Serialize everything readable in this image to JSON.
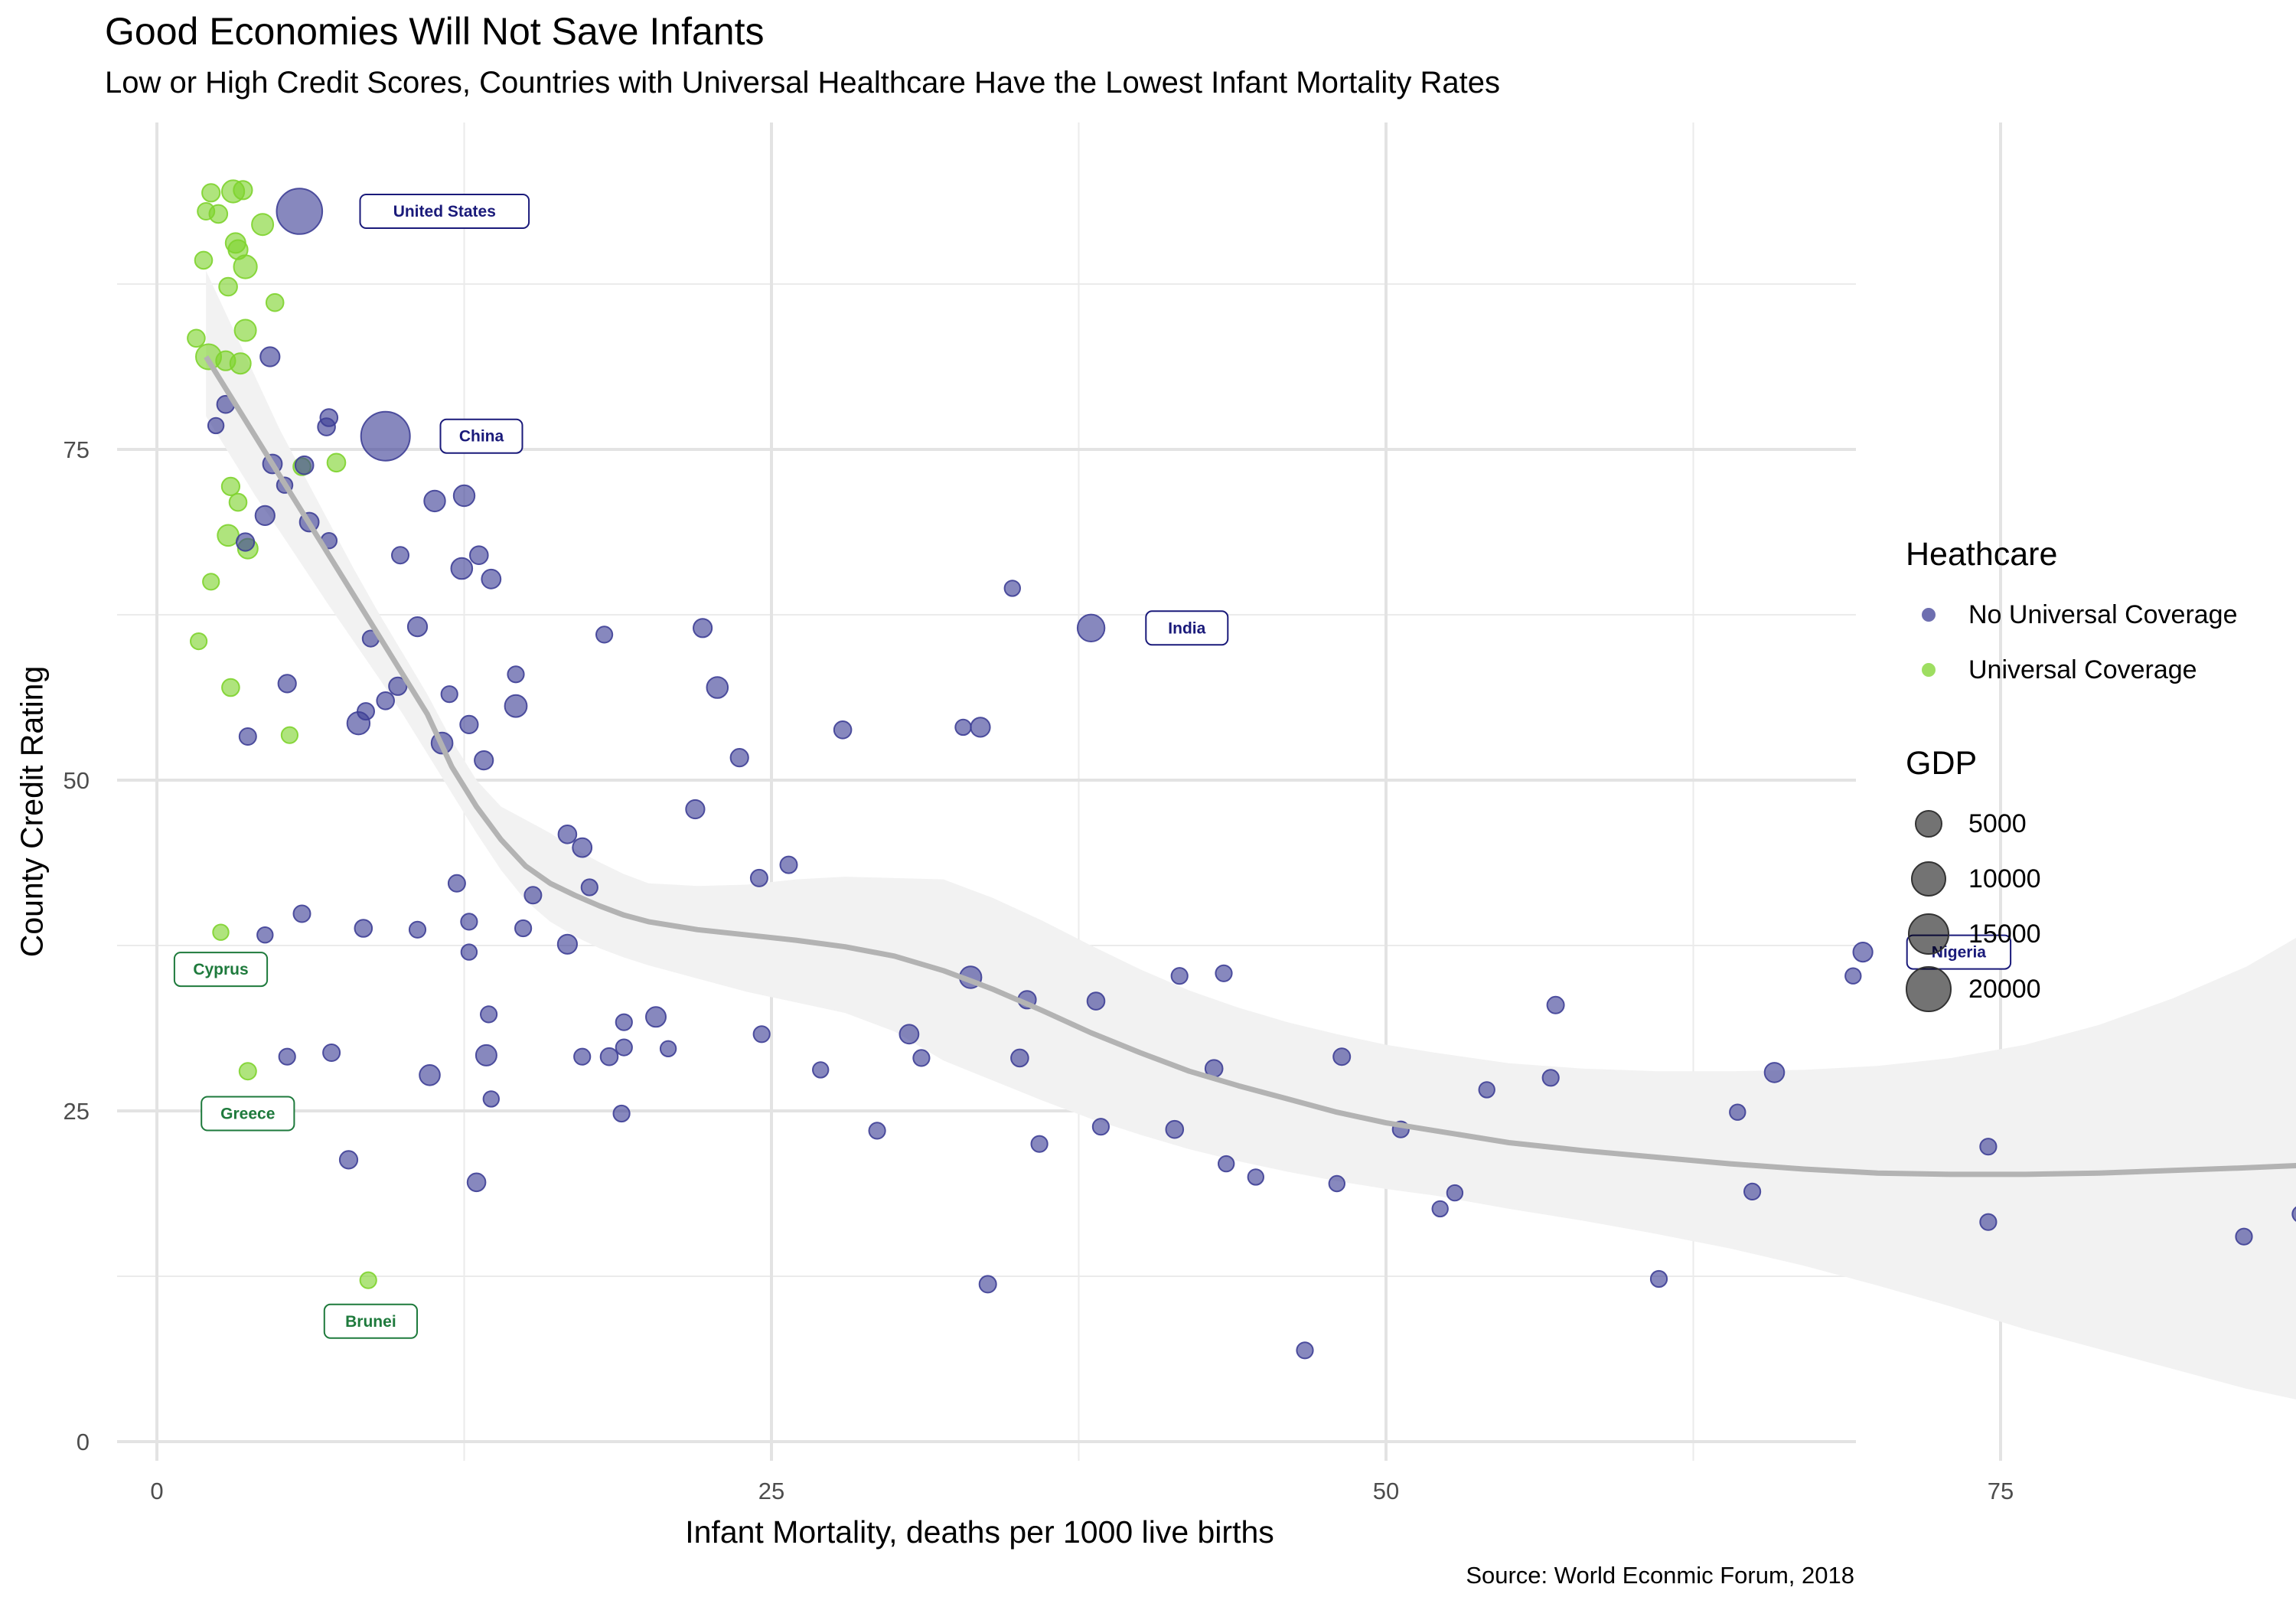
{
  "chart_data": {
    "type": "scatter",
    "title": "Good Economies Will Not Save Infants",
    "subtitle": "Low or High Credit Scores, Countries with Universal Healthcare Have the Lowest Infant Mortality Rates",
    "caption": "Source: World Econmic Forum, 2018",
    "xlabel": "Infant Mortality, deaths per 1000 live births",
    "ylabel": "County Credit Rating",
    "xlim": [
      -2,
      91
    ],
    "ylim": [
      -1.5,
      99
    ],
    "x_ticks": [
      0,
      25,
      50,
      75
    ],
    "y_ticks": [
      0,
      25,
      50,
      75
    ],
    "grid": true,
    "legend_position": "right",
    "colors": {
      "No Universal Coverage": "#3e3f96",
      "Universal Coverage": "#7ed32d",
      "smooth_line": "#b3b3b3",
      "confidence_band": "#f2f2f2",
      "gridline": "#ebebeb",
      "label_no_universal": "#1a1a7a",
      "label_universal": "#1e7a3c"
    },
    "legend_healthcare": {
      "title": "Heathcare",
      "entries": [
        "No Universal Coverage",
        "Universal Coverage"
      ]
    },
    "legend_gdp": {
      "title": "GDP",
      "entries": [
        5000,
        10000,
        15000,
        20000
      ]
    },
    "series": [
      {
        "name": "Universal Coverage",
        "points": [
          [
            2.2,
            94.4,
            800
          ],
          [
            2.0,
            93.0,
            600
          ],
          [
            2.5,
            92.8,
            900
          ],
          [
            3.1,
            94.5,
            2200
          ],
          [
            3.5,
            94.6,
            1000
          ],
          [
            4.3,
            92.0,
            1900
          ],
          [
            3.2,
            90.6,
            1400
          ],
          [
            3.3,
            90.1,
            1200
          ],
          [
            1.9,
            89.3,
            700
          ],
          [
            3.6,
            88.8,
            2500
          ],
          [
            2.9,
            87.3,
            900
          ],
          [
            4.8,
            86.1,
            700
          ],
          [
            3.6,
            84.0,
            1900
          ],
          [
            1.6,
            83.4,
            700
          ],
          [
            2.1,
            82.0,
            3500
          ],
          [
            2.8,
            81.7,
            1200
          ],
          [
            3.4,
            81.5,
            1600
          ],
          [
            7.3,
            74.0,
            900
          ],
          [
            5.9,
            73.7,
            700
          ],
          [
            3.0,
            72.2,
            800
          ],
          [
            3.3,
            71.0,
            700
          ],
          [
            2.9,
            68.5,
            1800
          ],
          [
            3.7,
            67.5,
            1400
          ],
          [
            2.2,
            65.0,
            500
          ],
          [
            1.7,
            60.5,
            500
          ],
          [
            3.0,
            57.0,
            700
          ],
          [
            5.4,
            53.4,
            500
          ],
          [
            2.6,
            38.5,
            400
          ],
          [
            3.7,
            28.0,
            600
          ],
          [
            8.6,
            12.2,
            500
          ]
        ]
      },
      {
        "name": "No Universal Coverage",
        "points": [
          [
            5.8,
            93.0,
            20000
          ],
          [
            4.6,
            82.0,
            1200
          ],
          [
            2.8,
            78.4,
            700
          ],
          [
            2.4,
            76.8,
            400
          ],
          [
            7.0,
            77.4,
            700
          ],
          [
            6.9,
            76.7,
            700
          ],
          [
            9.3,
            76.0,
            24000
          ],
          [
            4.7,
            73.9,
            1100
          ],
          [
            6.0,
            73.8,
            900
          ],
          [
            5.2,
            72.3,
            400
          ],
          [
            11.3,
            71.1,
            1700
          ],
          [
            12.5,
            71.5,
            1700
          ],
          [
            4.4,
            70.0,
            1200
          ],
          [
            6.2,
            69.5,
            1100
          ],
          [
            7.0,
            68.1,
            400
          ],
          [
            3.6,
            68.0,
            800
          ],
          [
            9.9,
            67.0,
            600
          ],
          [
            13.1,
            67.0,
            900
          ],
          [
            12.4,
            66.0,
            1800
          ],
          [
            13.6,
            65.2,
            1100
          ],
          [
            34.8,
            64.5,
            400
          ],
          [
            38.0,
            61.5,
            4400
          ],
          [
            22.2,
            61.5,
            1000
          ],
          [
            10.6,
            61.6,
            1200
          ],
          [
            18.2,
            61.0,
            500
          ],
          [
            8.7,
            60.7,
            500
          ],
          [
            14.6,
            58.0,
            500
          ],
          [
            5.3,
            57.3,
            800
          ],
          [
            9.8,
            57.1,
            800
          ],
          [
            22.8,
            57.0,
            1800
          ],
          [
            11.9,
            56.5,
            500
          ],
          [
            9.3,
            56.0,
            700
          ],
          [
            14.6,
            55.6,
            2100
          ],
          [
            8.5,
            55.2,
            600
          ],
          [
            11.6,
            52.8,
            1800
          ],
          [
            8.2,
            54.3,
            2300
          ],
          [
            12.7,
            54.2,
            800
          ],
          [
            27.9,
            53.8,
            700
          ],
          [
            33.5,
            54.0,
            1200
          ],
          [
            32.8,
            54.0,
            400
          ],
          [
            3.7,
            53.3,
            600
          ],
          [
            13.3,
            51.5,
            1000
          ],
          [
            23.7,
            51.7,
            800
          ],
          [
            21.9,
            47.8,
            1000
          ],
          [
            16.7,
            45.9,
            900
          ],
          [
            17.3,
            44.9,
            1100
          ],
          [
            25.7,
            43.6,
            600
          ],
          [
            24.5,
            42.6,
            600
          ],
          [
            12.2,
            42.2,
            600
          ],
          [
            17.6,
            41.9,
            500
          ],
          [
            15.3,
            41.3,
            600
          ],
          [
            5.9,
            39.9,
            600
          ],
          [
            12.7,
            39.3,
            500
          ],
          [
            8.4,
            38.8,
            700
          ],
          [
            10.6,
            38.7,
            500
          ],
          [
            14.9,
            38.8,
            500
          ],
          [
            4.4,
            38.3,
            400
          ],
          [
            16.7,
            37.6,
            1200
          ],
          [
            12.7,
            37.0,
            400
          ],
          [
            69.4,
            37.0,
            1200
          ],
          [
            41.6,
            35.2,
            500
          ],
          [
            43.4,
            35.4,
            500
          ],
          [
            69.0,
            35.2,
            400
          ],
          [
            33.1,
            35.1,
            2000
          ],
          [
            35.4,
            33.4,
            800
          ],
          [
            38.2,
            33.3,
            700
          ],
          [
            56.9,
            33.0,
            600
          ],
          [
            13.5,
            32.3,
            500
          ],
          [
            20.3,
            32.1,
            1400
          ],
          [
            19.0,
            31.7,
            500
          ],
          [
            24.6,
            30.8,
            500
          ],
          [
            30.6,
            30.8,
            1100
          ],
          [
            5.3,
            29.1,
            500
          ],
          [
            7.1,
            29.4,
            600
          ],
          [
            13.4,
            29.2,
            1600
          ],
          [
            17.3,
            29.1,
            500
          ],
          [
            18.4,
            29.1,
            700
          ],
          [
            19.0,
            29.8,
            500
          ],
          [
            20.8,
            29.7,
            400
          ],
          [
            31.1,
            29.0,
            500
          ],
          [
            35.1,
            29.0,
            700
          ],
          [
            48.2,
            29.1,
            600
          ],
          [
            11.1,
            27.7,
            1500
          ],
          [
            27.0,
            28.1,
            400
          ],
          [
            43.0,
            28.2,
            700
          ],
          [
            56.7,
            27.5,
            500
          ],
          [
            65.8,
            27.9,
            1300
          ],
          [
            13.6,
            25.9,
            400
          ],
          [
            18.9,
            24.8,
            500
          ],
          [
            54.1,
            26.6,
            400
          ],
          [
            64.3,
            24.9,
            400
          ],
          [
            29.3,
            23.5,
            500
          ],
          [
            38.4,
            23.8,
            500
          ],
          [
            41.4,
            23.6,
            700
          ],
          [
            50.6,
            23.6,
            500
          ],
          [
            35.9,
            22.5,
            500
          ],
          [
            74.5,
            22.3,
            500
          ],
          [
            7.8,
            21.3,
            800
          ],
          [
            43.5,
            21.0,
            400
          ],
          [
            44.7,
            20.0,
            400
          ],
          [
            13.0,
            19.6,
            900
          ],
          [
            48.0,
            19.5,
            400
          ],
          [
            52.8,
            18.8,
            400
          ],
          [
            64.9,
            18.9,
            500
          ],
          [
            52.2,
            17.6,
            400
          ],
          [
            74.5,
            16.6,
            500
          ],
          [
            87.2,
            17.2,
            500
          ],
          [
            84.9,
            15.5,
            500
          ],
          [
            61.1,
            12.3,
            500
          ],
          [
            33.8,
            11.9,
            600
          ],
          [
            46.7,
            6.9,
            500
          ]
        ]
      }
    ],
    "smooth_fit": {
      "x": [
        2,
        3,
        4,
        5,
        6,
        7,
        8,
        9,
        10,
        11,
        12,
        13,
        14,
        15,
        16,
        17,
        18,
        19,
        20,
        22,
        24,
        26,
        28,
        30,
        32,
        34,
        36,
        38,
        40,
        42,
        44,
        46,
        48,
        50,
        52,
        55,
        58,
        61,
        64,
        67,
        70,
        73,
        76,
        79,
        82,
        85,
        87.5
      ],
      "y": [
        82,
        79,
        76,
        73,
        70,
        67,
        64,
        61,
        58,
        55,
        51,
        48,
        45.5,
        43.5,
        42.2,
        41.3,
        40.5,
        39.8,
        39.3,
        38.7,
        38.3,
        37.9,
        37.4,
        36.7,
        35.6,
        34.2,
        32.6,
        30.9,
        29.4,
        28.0,
        26.9,
        25.9,
        24.9,
        24.1,
        23.5,
        22.6,
        22.0,
        21.5,
        21.0,
        20.6,
        20.3,
        20.2,
        20.2,
        20.3,
        20.5,
        20.7,
        20.9
      ],
      "upper": [
        88.5,
        84.5,
        80.5,
        76.5,
        73.0,
        69.5,
        66.0,
        62.7,
        59.6,
        56.5,
        53.0,
        50.0,
        48.0,
        47.0,
        46.0,
        44.8,
        43.8,
        42.9,
        42.2,
        42.0,
        42.1,
        42.5,
        42.7,
        42.6,
        42.5,
        41.1,
        39.4,
        37.5,
        35.7,
        34.1,
        32.8,
        31.7,
        30.8,
        30.0,
        29.4,
        28.6,
        28.2,
        28.0,
        28.0,
        28.1,
        28.4,
        29.0,
        30.0,
        31.5,
        33.5,
        35.9,
        38.6
      ],
      "lower": [
        77.5,
        74.5,
        71.5,
        68.8,
        66.0,
        63.2,
        60.5,
        57.8,
        55.0,
        52.0,
        49.0,
        46.0,
        43.2,
        40.9,
        39.3,
        38.2,
        37.3,
        36.6,
        36.0,
        35.0,
        34.0,
        33.2,
        32.4,
        31.0,
        28.8,
        27.3,
        25.8,
        24.4,
        23.2,
        22.1,
        21.2,
        20.4,
        19.7,
        19.1,
        18.6,
        17.6,
        16.7,
        15.7,
        14.6,
        13.3,
        11.8,
        10.2,
        8.5,
        7.0,
        5.5,
        4.0,
        3.0
      ]
    },
    "annotations": [
      {
        "label": "United States",
        "x": 11.7,
        "y": 93.0,
        "group": "No Universal Coverage"
      },
      {
        "label": "China",
        "x": 13.2,
        "y": 76.0,
        "group": "No Universal Coverage"
      },
      {
        "label": "India",
        "x": 41.9,
        "y": 61.5,
        "group": "No Universal Coverage"
      },
      {
        "label": "Nigeria",
        "x": 73.3,
        "y": 37.0,
        "group": "No Universal Coverage"
      },
      {
        "label": "Cyprus",
        "x": 2.6,
        "y": 35.7,
        "group": "Universal Coverage"
      },
      {
        "label": "Greece",
        "x": 3.7,
        "y": 24.8,
        "group": "Universal Coverage"
      },
      {
        "label": "Brunei",
        "x": 8.7,
        "y": 9.1,
        "group": "Universal Coverage"
      }
    ]
  }
}
